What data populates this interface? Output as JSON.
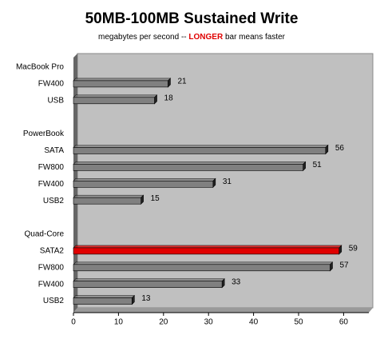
{
  "chart_data": {
    "type": "bar",
    "orientation": "horizontal",
    "title": "50MB-100MB Sustained Write",
    "subtitle": [
      "megabytes per second -- ",
      "LONGER",
      " bar means faster"
    ],
    "categories": [
      "MacBook Pro",
      "FW400",
      "USB",
      null,
      "PowerBook",
      "SATA",
      "FW800",
      "FW400",
      "USB2",
      null,
      "Quad-Core",
      "SATA2",
      "FW800",
      "FW400",
      "USB2"
    ],
    "values": [
      null,
      21,
      18,
      null,
      null,
      56,
      51,
      31,
      15,
      null,
      null,
      59,
      57,
      33,
      13
    ],
    "colors": [
      null,
      "#808080",
      "#808080",
      null,
      null,
      "#808080",
      "#808080",
      "#808080",
      "#808080",
      null,
      null,
      "#e00000",
      "#808080",
      "#808080",
      "#808080"
    ],
    "xlim": [
      0,
      65
    ],
    "xticks": [
      0,
      10,
      20,
      30,
      40,
      50,
      60
    ]
  }
}
